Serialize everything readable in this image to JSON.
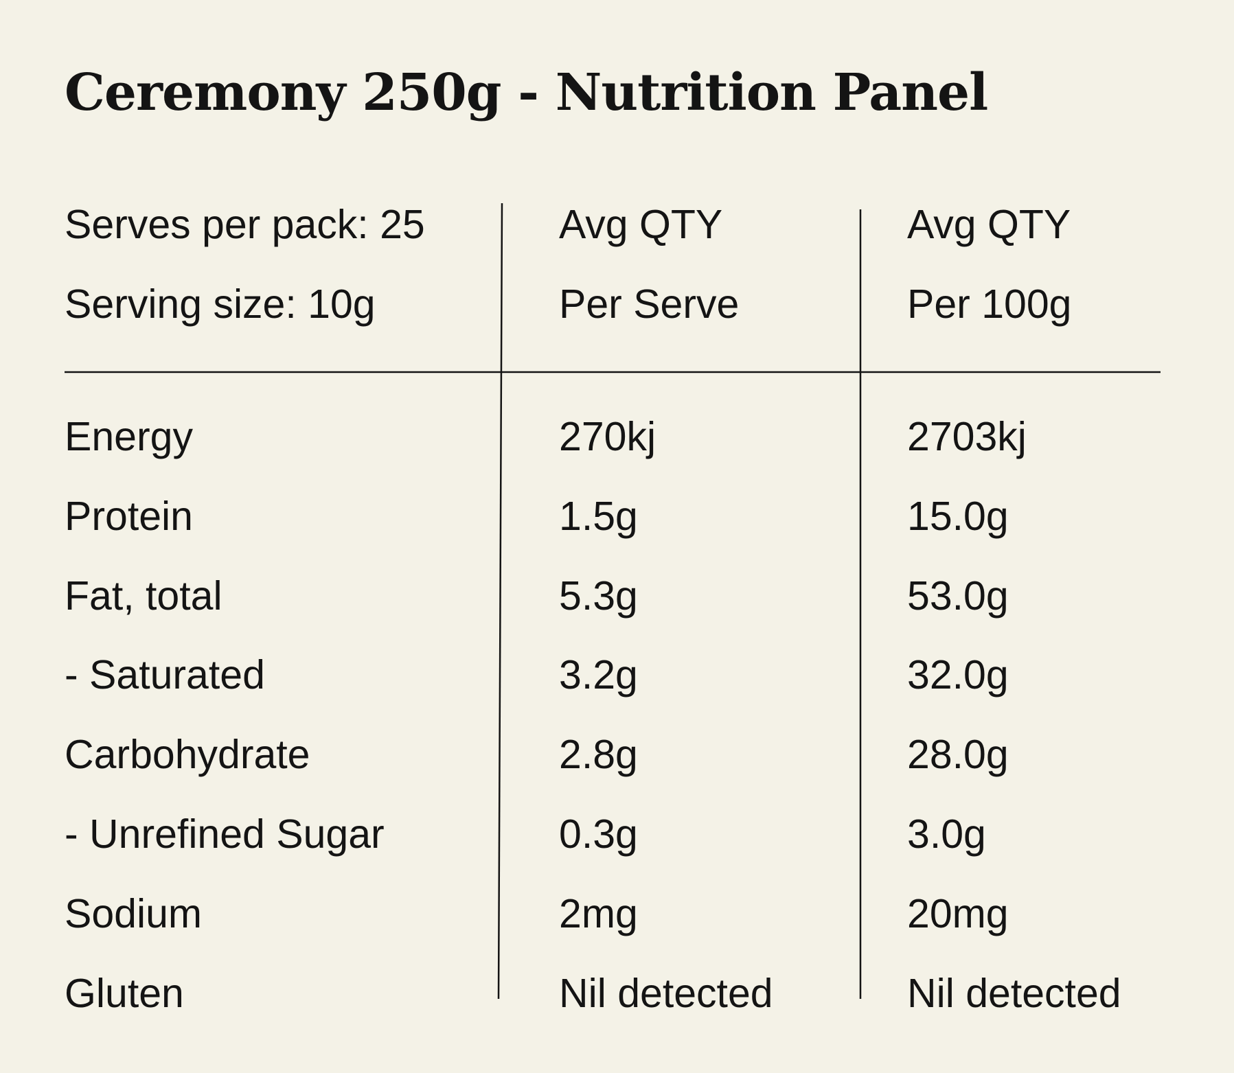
{
  "title": "Ceremony 250g - Nutrition Panel",
  "header": {
    "rows": [
      [
        "Serves per pack: 25",
        "Avg QTY",
        "Avg QTY"
      ],
      [
        "Serving size: 10g",
        "Per Serve",
        "Per 100g"
      ]
    ]
  },
  "table": {
    "rows": [
      [
        "Energy",
        "270kj",
        "2703kj"
      ],
      [
        "Protein",
        "1.5g",
        "15.0g"
      ],
      [
        "Fat, total",
        "5.3g",
        "53.0g"
      ],
      [
        "- Saturated",
        "3.2g",
        "32.0g"
      ],
      [
        "Carbohydrate",
        "2.8g",
        "28.0g"
      ],
      [
        "- Unrefined Sugar",
        "0.3g",
        "3.0g"
      ],
      [
        "Sodium",
        "2mg",
        "20mg"
      ],
      [
        "Gluten",
        "Nil detected",
        "Nil detected"
      ]
    ]
  }
}
